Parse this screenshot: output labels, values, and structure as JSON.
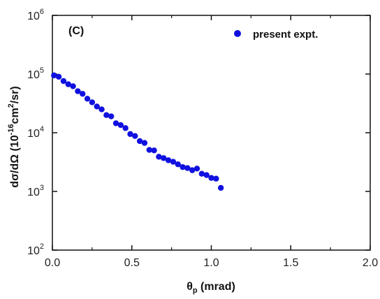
{
  "chart_data": {
    "type": "scatter",
    "panel_label": "(C)",
    "xlabel": "θp (mrad)",
    "xlabel_main": "θ",
    "xlabel_sub": "p",
    "xlabel_rest": " (mrad)",
    "ylabel": "dσ/dΩ (10-16cm2/sr)",
    "ylabel_parts": {
      "pre": "dσ/dΩ  (10",
      "exp1": "-16",
      "mid": "cm",
      "exp2": "2",
      "post": "/sr)"
    },
    "xlim": [
      0.0,
      2.0
    ],
    "ylim": [
      100,
      1000000
    ],
    "yscale": "log",
    "x_ticks": [
      "0.0",
      "0.5",
      "1.0",
      "1.5",
      "2.0"
    ],
    "x_tick_values": [
      0.0,
      0.5,
      1.0,
      1.5,
      2.0
    ],
    "y_ticks": [
      {
        "base": "10",
        "exp": "2"
      },
      {
        "base": "10",
        "exp": "3"
      },
      {
        "base": "10",
        "exp": "4"
      },
      {
        "base": "10",
        "exp": "5"
      },
      {
        "base": "10",
        "exp": "6"
      }
    ],
    "y_tick_values": [
      100,
      1000,
      10000,
      100000,
      1000000
    ],
    "grid": false,
    "legend_position": "top-right",
    "series_color": "#1010e0",
    "series": [
      {
        "name": "present expt.",
        "marker": "circle",
        "x": [
          0.01,
          0.04,
          0.07,
          0.1,
          0.13,
          0.16,
          0.19,
          0.22,
          0.25,
          0.28,
          0.31,
          0.34,
          0.37,
          0.4,
          0.43,
          0.46,
          0.49,
          0.52,
          0.55,
          0.58,
          0.61,
          0.64,
          0.67,
          0.7,
          0.73,
          0.76,
          0.79,
          0.82,
          0.85,
          0.88,
          0.91,
          0.94,
          0.97,
          1.0,
          1.03,
          1.06
        ],
        "y": [
          95000,
          90000,
          76000,
          67000,
          62000,
          51000,
          46000,
          38000,
          33000,
          28000,
          25000,
          20000,
          19000,
          14500,
          13500,
          12000,
          9500,
          8800,
          7200,
          6700,
          5100,
          5000,
          3900,
          3700,
          3400,
          3200,
          2900,
          2600,
          2500,
          2300,
          2450,
          2000,
          1900,
          1700,
          1650,
          1150
        ],
        "xerr": 0.015
      }
    ]
  }
}
